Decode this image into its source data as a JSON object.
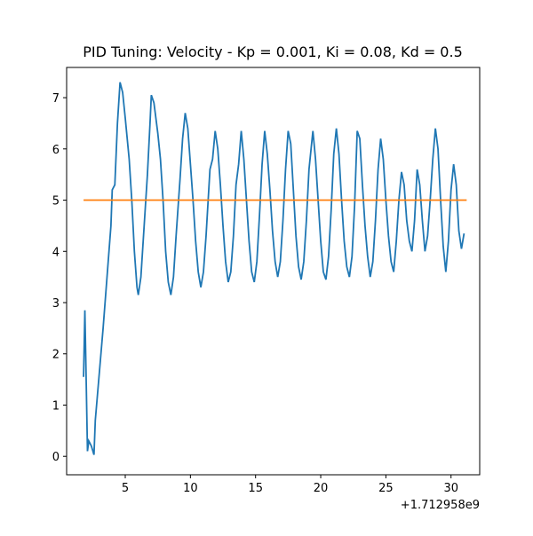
{
  "chart_data": {
    "type": "line",
    "title": "PID Tuning: Velocity - Kp = 0.001, Ki = 0.08, Kd = 0.5",
    "x_offset": "+1.712958e9",
    "xlim": [
      0.5,
      32.2
    ],
    "ylim": [
      -0.36,
      7.59
    ],
    "xticks": [
      5,
      10,
      15,
      20,
      25,
      30
    ],
    "yticks": [
      0,
      1,
      2,
      3,
      4,
      5,
      6,
      7
    ],
    "series": [
      {
        "color": "#1f77b4",
        "x": [
          1.8,
          1.9,
          2.0,
          2.1,
          2.2,
          2.4,
          2.6,
          2.7,
          3.0,
          3.3,
          3.6,
          3.9,
          4.0,
          4.2,
          4.4,
          4.6,
          4.8,
          5.0,
          5.3,
          5.5,
          5.7,
          5.9,
          6.0,
          6.2,
          6.4,
          6.7,
          6.9,
          7.0,
          7.2,
          7.5,
          7.7,
          7.9,
          8.1,
          8.3,
          8.5,
          8.7,
          8.9,
          9.2,
          9.4,
          9.6,
          9.8,
          10.0,
          10.2,
          10.4,
          10.6,
          10.8,
          11.0,
          11.2,
          11.5,
          11.7,
          11.9,
          12.1,
          12.3,
          12.5,
          12.7,
          12.9,
          13.1,
          13.3,
          13.5,
          13.7,
          13.9,
          14.1,
          14.3,
          14.5,
          14.7,
          14.9,
          15.1,
          15.3,
          15.5,
          15.7,
          15.9,
          16.1,
          16.3,
          16.5,
          16.7,
          16.9,
          17.1,
          17.3,
          17.5,
          17.7,
          17.9,
          18.1,
          18.3,
          18.5,
          18.7,
          18.9,
          19.1,
          19.4,
          19.6,
          19.8,
          20.0,
          20.2,
          20.4,
          20.6,
          20.8,
          21.0,
          21.2,
          21.4,
          21.6,
          21.8,
          22.0,
          22.2,
          22.4,
          22.6,
          22.8,
          23.0,
          23.2,
          23.4,
          23.6,
          23.8,
          24.0,
          24.2,
          24.4,
          24.6,
          24.8,
          25.0,
          25.2,
          25.4,
          25.6,
          25.8,
          26.0,
          26.2,
          26.4,
          26.6,
          26.8,
          27.0,
          27.2,
          27.4,
          27.6,
          27.8,
          28.0,
          28.2,
          28.4,
          28.6,
          28.8,
          29.0,
          29.2,
          29.4,
          29.6,
          29.8,
          30.0,
          30.2,
          30.4,
          30.6,
          30.8,
          31.0
        ],
        "values": [
          1.55,
          2.85,
          1.5,
          0.1,
          0.3,
          0.2,
          0.03,
          0.7,
          1.6,
          2.5,
          3.5,
          4.5,
          5.2,
          5.3,
          6.5,
          7.3,
          7.1,
          6.6,
          5.8,
          5.0,
          4.0,
          3.3,
          3.15,
          3.5,
          4.3,
          5.5,
          6.5,
          7.05,
          6.9,
          6.3,
          5.8,
          5.0,
          4.0,
          3.4,
          3.15,
          3.5,
          4.3,
          5.4,
          6.2,
          6.7,
          6.4,
          5.7,
          5.0,
          4.2,
          3.6,
          3.3,
          3.6,
          4.3,
          5.6,
          5.8,
          6.35,
          6.0,
          5.3,
          4.5,
          3.8,
          3.4,
          3.6,
          4.3,
          5.3,
          5.7,
          6.35,
          5.8,
          5.0,
          4.2,
          3.6,
          3.4,
          3.8,
          4.7,
          5.7,
          6.35,
          5.9,
          5.2,
          4.4,
          3.8,
          3.5,
          3.8,
          4.6,
          5.6,
          6.35,
          6.1,
          5.2,
          4.3,
          3.7,
          3.45,
          3.8,
          4.6,
          5.6,
          6.35,
          5.8,
          5.0,
          4.2,
          3.6,
          3.45,
          3.9,
          4.8,
          5.9,
          6.4,
          5.9,
          5.0,
          4.2,
          3.7,
          3.5,
          3.9,
          4.9,
          6.35,
          6.2,
          5.3,
          4.5,
          3.9,
          3.5,
          3.8,
          4.6,
          5.6,
          6.2,
          5.8,
          5.0,
          4.3,
          3.8,
          3.6,
          4.2,
          5.0,
          5.55,
          5.3,
          4.6,
          4.2,
          4.0,
          4.6,
          5.6,
          5.3,
          4.6,
          4.0,
          4.3,
          5.0,
          5.8,
          6.4,
          6.0,
          5.0,
          4.1,
          3.6,
          4.2,
          5.2,
          5.7,
          5.3,
          4.4,
          4.05,
          4.35
        ]
      },
      {
        "color": "#ff7f0e",
        "x": [
          1.8,
          31.2
        ],
        "values": [
          5,
          5
        ]
      }
    ]
  }
}
